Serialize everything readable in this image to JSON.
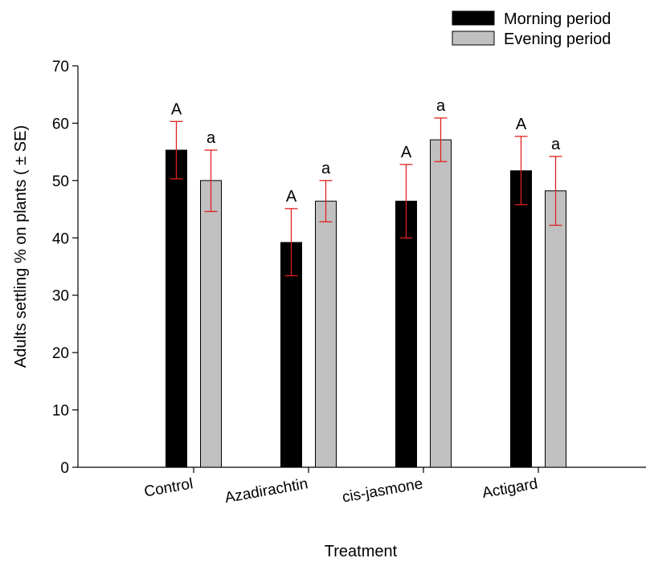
{
  "chart_data": {
    "type": "bar",
    "xlabel": "Treatment",
    "ylabel": "Adults settling % on plants ( ± SE)",
    "ylim": [
      0,
      70
    ],
    "yticks": [
      0,
      10,
      20,
      30,
      40,
      50,
      60,
      70
    ],
    "grid": false,
    "legend_position": "top-right",
    "categories": [
      "Control",
      "Azadirachtin",
      "cis-jasmone",
      "Actigard"
    ],
    "series": [
      {
        "name": "Morning period",
        "color": "#000000",
        "values": [
          55.3,
          39.2,
          46.4,
          51.7
        ],
        "error_low": [
          50.3,
          33.4,
          40.0,
          45.8
        ],
        "error_high": [
          60.3,
          45.1,
          52.8,
          57.7
        ],
        "labels": [
          "A",
          "A",
          "A",
          "A"
        ]
      },
      {
        "name": "Evening period",
        "color": "#c0c0c0",
        "values": [
          50.0,
          46.4,
          57.1,
          48.2
        ],
        "error_low": [
          44.6,
          42.8,
          53.3,
          42.2
        ],
        "error_high": [
          55.3,
          50.0,
          60.9,
          54.2
        ],
        "labels": [
          "a",
          "a",
          "a",
          "a"
        ]
      }
    ],
    "error_bar_color": "#e02020"
  }
}
